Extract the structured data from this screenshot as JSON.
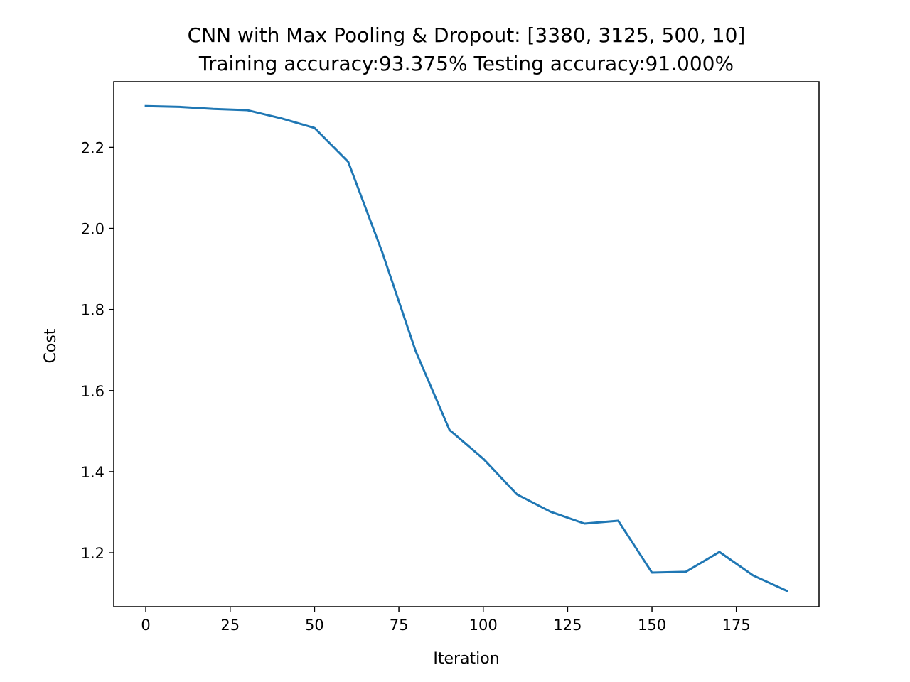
{
  "chart_data": {
    "type": "line",
    "title": "CNN with Max Pooling & Dropout: [3380, 3125, 500, 10]",
    "subtitle": "Training accuracy:93.375% Testing accuracy:91.000%",
    "xlabel": "Iteration",
    "ylabel": "Cost",
    "xlim": [
      -9.5,
      199.5
    ],
    "ylim": [
      1.067,
      2.362
    ],
    "xticks": [
      0,
      25,
      50,
      75,
      100,
      125,
      150,
      175
    ],
    "yticks": [
      1.2,
      1.4,
      1.6,
      1.8,
      2.0,
      2.2
    ],
    "xtick_labels": [
      "0",
      "25",
      "50",
      "75",
      "100",
      "125",
      "150",
      "175"
    ],
    "ytick_labels": [
      "1.2",
      "1.4",
      "1.6",
      "1.8",
      "2.0",
      "2.2"
    ],
    "grid": false,
    "series": [
      {
        "color": "#1f77b4",
        "x": [
          0,
          10,
          20,
          30,
          40,
          50,
          60,
          70,
          80,
          90,
          100,
          110,
          120,
          130,
          140,
          150,
          160,
          170,
          180,
          190
        ],
        "values": [
          2.302,
          2.3,
          2.295,
          2.292,
          2.272,
          2.248,
          2.164,
          1.943,
          1.697,
          1.503,
          1.432,
          1.344,
          1.301,
          1.272,
          1.279,
          1.151,
          1.153,
          1.202,
          1.144,
          1.106
        ]
      }
    ]
  }
}
